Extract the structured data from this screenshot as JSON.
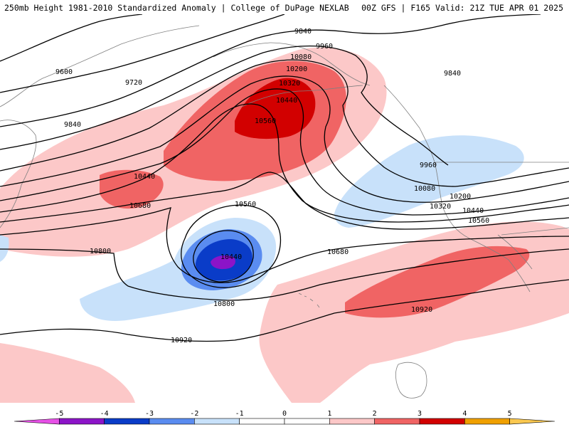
{
  "header": {
    "left": "250mb Height 1981-2010 Standardized Anomaly | College of DuPage NEXLAB",
    "right": "00Z GFS | F165 Valid: 21Z TUE APR 01 2025"
  },
  "colors": {
    "pos_1_2": "#fcc8c8",
    "pos_2_3": "#f06464",
    "pos_3_4": "#d20000",
    "pos_4_5": "#f0a000",
    "pos_gt5": "#fac850",
    "neg_1_2": "#c8e1fa",
    "neg_2_3": "#5a8cf0",
    "neg_3_4": "#0a3cc8",
    "neg_4_5": "#8c14c8",
    "neg_lt5": "#e650e6",
    "coast": "#808080",
    "contour": "#000000"
  },
  "contour_labels": [
    "9600",
    "9720",
    "9840",
    "9840",
    "9840",
    "9960",
    "9960",
    "10080",
    "10080",
    "10200",
    "10200",
    "10320",
    "10320",
    "10440",
    "10440",
    "10440",
    "10440",
    "10560",
    "10560",
    "10560",
    "10680",
    "10680",
    "10800",
    "10800",
    "10920",
    "10920"
  ],
  "colorbar": {
    "ticks": [
      "-5",
      "-4",
      "-3",
      "-2",
      "-1",
      "0",
      "1",
      "2",
      "3",
      "4",
      "5"
    ]
  }
}
